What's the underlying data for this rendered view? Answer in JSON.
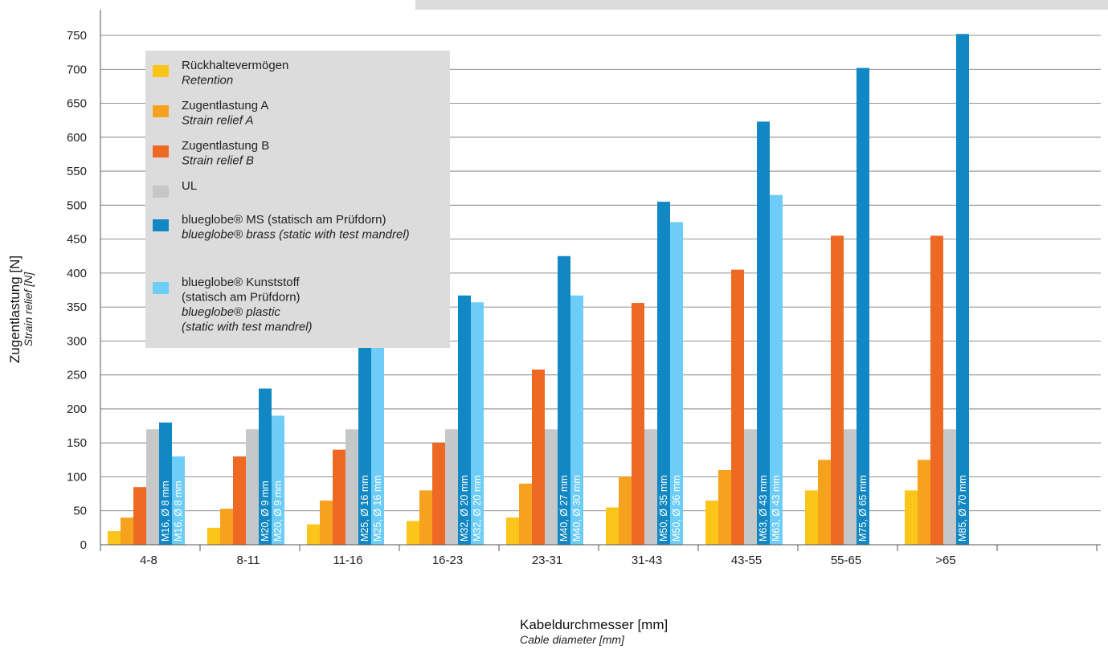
{
  "chart_data": {
    "type": "bar",
    "xlabel": "Kabeldurchmesser [mm]",
    "xlabel_en": "Cable diameter [mm]",
    "ylabel": "Zugentlastung [N]",
    "ylabel_en": "Strain relief [N]",
    "ylim": [
      0,
      750
    ],
    "yticks": [
      0,
      50,
      100,
      150,
      200,
      250,
      300,
      350,
      400,
      450,
      500,
      550,
      600,
      650,
      700,
      750
    ],
    "grid": true,
    "legend_position": "top-left",
    "categories": [
      "4-8",
      "8-11",
      "11-16",
      "16-23",
      "23-31",
      "31-43",
      "43-55",
      "55-65",
      ">65"
    ],
    "series": [
      {
        "name": "Rückhaltevermögen",
        "name_en": [
          "Retention"
        ],
        "name_lines": [
          "Rückhaltevermögen"
        ],
        "color": "#fcc51a",
        "values": [
          20,
          25,
          30,
          35,
          40,
          55,
          65,
          80,
          80
        ]
      },
      {
        "name": "Zugentlastung A",
        "name_en": [
          "Strain relief A"
        ],
        "name_lines": [
          "Zugentlastung A"
        ],
        "color": "#f7a21e",
        "values": [
          40,
          53,
          65,
          80,
          90,
          100,
          110,
          125,
          125
        ]
      },
      {
        "name": "Zugentlastung B",
        "name_en": [
          "Strain relief B"
        ],
        "name_lines": [
          "Zugentlastung B"
        ],
        "color": "#ee6a24",
        "values": [
          85,
          130,
          140,
          150,
          258,
          356,
          405,
          455,
          455
        ]
      },
      {
        "name": "UL",
        "name_en": [],
        "name_lines": [
          "UL"
        ],
        "color": "#c6c7c8",
        "values": [
          170,
          170,
          170,
          170,
          170,
          170,
          170,
          170,
          170
        ]
      },
      {
        "name": "blueglobe® MS (statisch am Prüfdorn)",
        "name_en": [
          "blueglobe® brass (static with test mandrel)"
        ],
        "name_lines": [
          "blueglobe® MS (statisch am Prüfdorn)"
        ],
        "color": "#1187c3",
        "values": [
          180,
          230,
          290,
          367,
          425,
          505,
          623,
          702,
          752
        ],
        "bar_labels": [
          "M16, Ø 8 mm",
          "M20, Ø 9 mm",
          "M25, Ø 16 mm",
          "M32, Ø 20 mm",
          "M40, Ø 27 mm",
          "M50, Ø 35 mm",
          "M63, Ø 43 mm",
          "M75, Ø 65 mm",
          "M85, Ø 70 mm"
        ]
      },
      {
        "name": "blueglobe® Kunststoff (statisch am Prüfdorn)",
        "name_en": [
          "blueglobe® plastic",
          "(static with test mandrel)"
        ],
        "name_lines": [
          "blueglobe® Kunststoff",
          "(statisch am Prüfdorn)"
        ],
        "color": "#6dcdf6",
        "values": [
          130,
          190,
          290,
          357,
          367,
          475,
          515,
          null,
          null
        ],
        "bar_labels": [
          "M16, Ø 8 mm",
          "M20, Ø 9 mm",
          "M25, Ø 16 mm",
          "M32, Ø 20 mm",
          "M40, Ø 30 mm",
          "M50, Ø 36 mm",
          "M63, Ø 43 mm",
          "",
          ""
        ]
      }
    ]
  }
}
